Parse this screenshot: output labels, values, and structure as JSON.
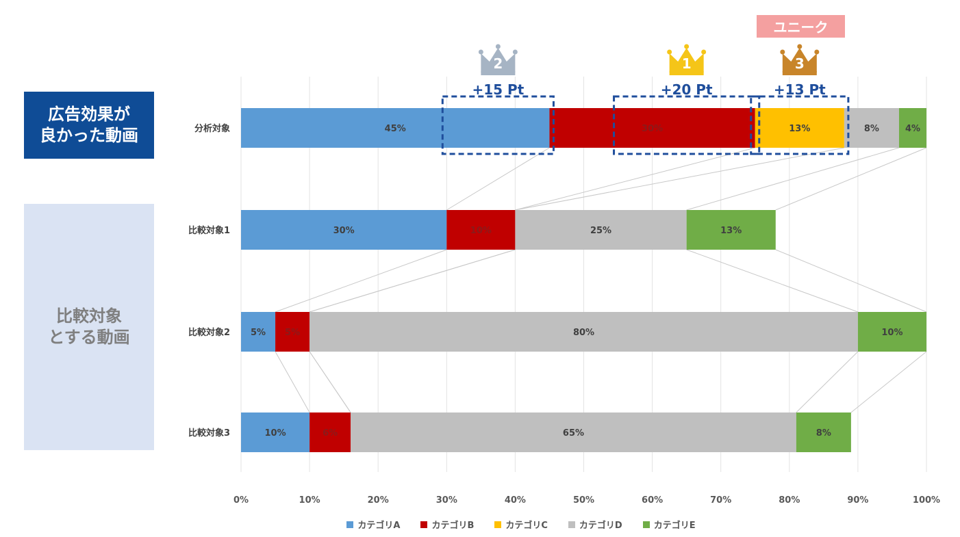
{
  "labels": {
    "good_box": [
      "広告効果が",
      "良かった動画"
    ],
    "comp_box": [
      "比較対象",
      "とする動画"
    ],
    "unique_badge": "ユニーク"
  },
  "colors": {
    "A": "#5b9bd5",
    "B": "#c00000",
    "C": "#ffc000",
    "D": "#bfbfbf",
    "E": "#70ad47",
    "highlight": "#1f4e9c"
  },
  "chart_data": {
    "type": "bar",
    "orientation": "horizontal-stacked",
    "rows": [
      "分析対象",
      "比較対象1",
      "比較対象2",
      "比較対象3"
    ],
    "series": [
      {
        "name": "カテゴリA",
        "key": "A",
        "values": [
          45,
          30,
          5,
          10
        ],
        "labels": [
          "45%",
          "30%",
          "5%",
          "10%"
        ]
      },
      {
        "name": "カテゴリB",
        "key": "B",
        "values": [
          30,
          10,
          5,
          6
        ],
        "labels": [
          "30%",
          "10%",
          "5%",
          "6%"
        ]
      },
      {
        "name": "カテゴリC",
        "key": "C",
        "values": [
          13,
          0,
          0,
          0
        ],
        "labels": [
          "13%",
          "",
          "",
          ""
        ]
      },
      {
        "name": "カテゴリD",
        "key": "D",
        "values": [
          8,
          25,
          80,
          65
        ],
        "labels": [
          "8%",
          "25%",
          "80%",
          "65%"
        ]
      },
      {
        "name": "カテゴリE",
        "key": "E",
        "values": [
          4,
          13,
          10,
          8
        ],
        "labels": [
          "4%",
          "13%",
          "10%",
          "8%"
        ]
      }
    ],
    "xlim": [
      0,
      100
    ],
    "xticks": [
      "0%",
      "10%",
      "20%",
      "30%",
      "40%",
      "50%",
      "60%",
      "70%",
      "80%",
      "90%",
      "100%"
    ],
    "legend_position": "bottom",
    "highlights": [
      {
        "from": 30,
        "to": 45,
        "label": "+15 Pt",
        "rank": "2",
        "crown_color": "#a6b4c4"
      },
      {
        "from": 55,
        "to": 75,
        "label": "+20 Pt",
        "rank": "1",
        "crown_color": "#f5c518"
      },
      {
        "from": 75,
        "to": 88,
        "label": "+13 Pt",
        "rank": "3",
        "crown_color": "#c8852a"
      }
    ]
  }
}
